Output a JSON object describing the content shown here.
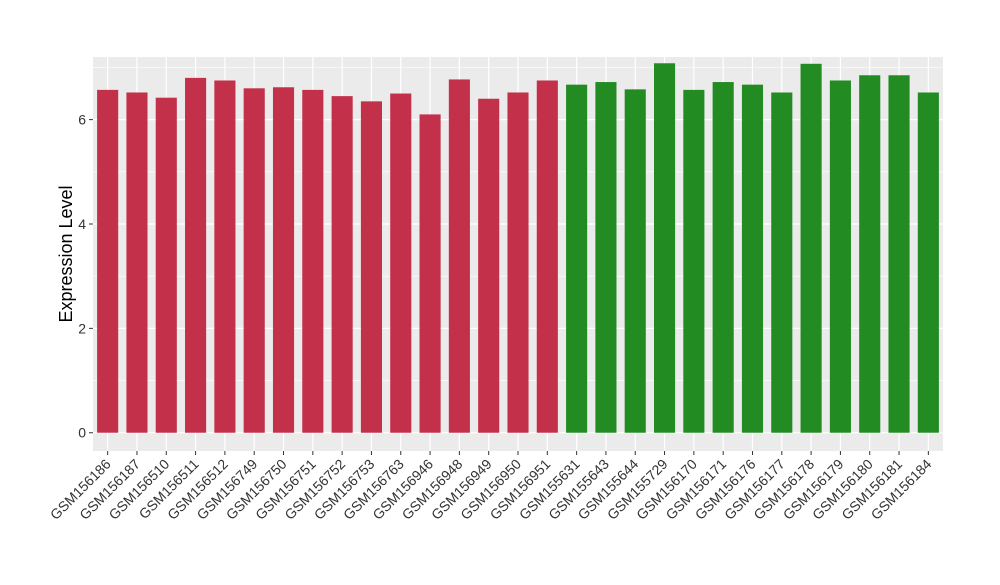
{
  "chart_data": {
    "type": "bar",
    "title": "",
    "xlabel": "",
    "ylabel": "Expression Level",
    "ylim": [
      -0.35,
      7.2
    ],
    "yticks": [
      0,
      2,
      4,
      6
    ],
    "grid": true,
    "legend": "none",
    "categories": [
      "GSM156186",
      "GSM156187",
      "GSM156510",
      "GSM156511",
      "GSM156512",
      "GSM156749",
      "GSM156750",
      "GSM156751",
      "GSM156752",
      "GSM156753",
      "GSM156763",
      "GSM156946",
      "GSM156948",
      "GSM156949",
      "GSM156950",
      "GSM156951",
      "GSM155631",
      "GSM155643",
      "GSM155644",
      "GSM155729",
      "GSM156170",
      "GSM156171",
      "GSM156176",
      "GSM156177",
      "GSM156178",
      "GSM156179",
      "GSM156180",
      "GSM156181",
      "GSM156184"
    ],
    "values": [
      6.57,
      6.52,
      6.42,
      6.8,
      6.75,
      6.6,
      6.62,
      6.57,
      6.45,
      6.35,
      6.5,
      6.1,
      6.77,
      6.4,
      6.52,
      6.75,
      6.67,
      6.72,
      6.58,
      7.08,
      6.57,
      6.72,
      6.67,
      6.52,
      7.07,
      6.75,
      6.85,
      6.85,
      6.52
    ],
    "groups": [
      "a",
      "a",
      "a",
      "a",
      "a",
      "a",
      "a",
      "a",
      "a",
      "a",
      "a",
      "a",
      "a",
      "a",
      "a",
      "a",
      "b",
      "b",
      "b",
      "b",
      "b",
      "b",
      "b",
      "b",
      "b",
      "b",
      "b",
      "b",
      "b"
    ],
    "colors": {
      "a": "#c3304a",
      "b": "#228b22",
      "panel": "#ebebeb",
      "grid": "#ffffff",
      "axis_text": "#333333"
    }
  }
}
